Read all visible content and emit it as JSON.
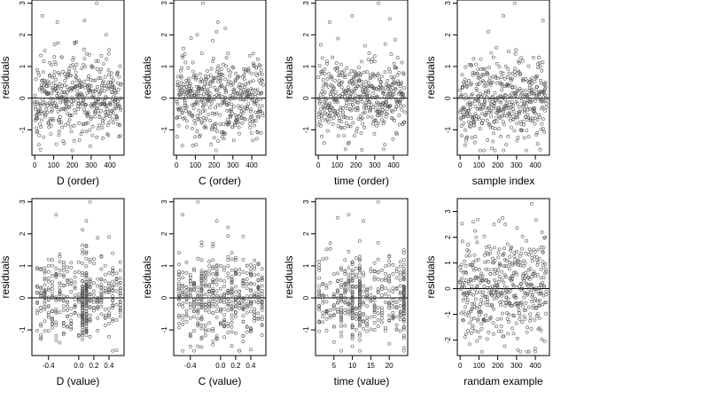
{
  "figure": {
    "layout": "2 rows x 4 columns of residual scatter plots",
    "point_style": "open circle",
    "colors": {
      "points": "#555555",
      "frame": "#000000",
      "reference_line": "#000000",
      "background": "#ffffff"
    }
  },
  "chart_data": [
    {
      "type": "scatter",
      "xlabel": "D (order)",
      "ylabel": "residuals",
      "xlim": [
        -15,
        475
      ],
      "ylim": [
        -1.8,
        3.1
      ],
      "xticks": [
        0,
        100,
        200,
        300,
        400
      ],
      "xtick_labels": [
        "0",
        "100",
        "200",
        "300",
        "400"
      ],
      "yticks": [
        -1,
        0,
        1,
        2,
        3
      ],
      "ytick_labels": [
        "-1",
        "0",
        "1",
        "2",
        "3"
      ],
      "reference_line_y": 0,
      "n_points": 460,
      "x_distribution": "uniform order 0-460",
      "y_distribution": "approximately normal, mean 0, sd 0.65",
      "annotated_points": [
        {
          "x": 40,
          "y": 2.6
        },
        {
          "x": 120,
          "y": 2.4
        },
        {
          "x": 265,
          "y": 2.45
        },
        {
          "x": 330,
          "y": 3.0
        },
        {
          "x": 380,
          "y": 2.0
        }
      ]
    },
    {
      "type": "scatter",
      "xlabel": "C (order)",
      "ylabel": "residuals",
      "xlim": [
        -15,
        475
      ],
      "ylim": [
        -1.8,
        3.1
      ],
      "xticks": [
        0,
        100,
        200,
        300,
        400
      ],
      "xtick_labels": [
        "0",
        "100",
        "200",
        "300",
        "400"
      ],
      "yticks": [
        -1,
        0,
        1,
        2,
        3
      ],
      "ytick_labels": [
        "-1",
        "0",
        "1",
        "2",
        "3"
      ],
      "reference_line_y": 0,
      "n_points": 460,
      "x_distribution": "uniform order 0-460",
      "y_distribution": "approximately normal, mean 0, sd 0.65",
      "annotated_points": [
        {
          "x": 140,
          "y": 3.0
        },
        {
          "x": 110,
          "y": 2.0
        },
        {
          "x": 220,
          "y": 2.4
        },
        {
          "x": 260,
          "y": 2.2
        }
      ]
    },
    {
      "type": "scatter",
      "xlabel": "time (order)",
      "ylabel": "residuals",
      "xlim": [
        -15,
        475
      ],
      "ylim": [
        -1.8,
        3.1
      ],
      "xticks": [
        0,
        100,
        200,
        300,
        400
      ],
      "xtick_labels": [
        "0",
        "100",
        "200",
        "300",
        "400"
      ],
      "yticks": [
        -1,
        0,
        1,
        2,
        3
      ],
      "ytick_labels": [
        "-1",
        "0",
        "1",
        "2",
        "3"
      ],
      "reference_line_y": 0,
      "n_points": 460,
      "x_distribution": "uniform order 0-460",
      "y_distribution": "approximately normal, mean 0, sd 0.65",
      "annotated_points": [
        {
          "x": 180,
          "y": 2.6
        },
        {
          "x": 320,
          "y": 3.0
        },
        {
          "x": 380,
          "y": 2.5
        },
        {
          "x": 60,
          "y": 2.4
        }
      ]
    },
    {
      "type": "scatter",
      "xlabel": "sample index",
      "ylabel": "residuals",
      "xlim": [
        -15,
        475
      ],
      "ylim": [
        -1.8,
        3.1
      ],
      "xticks": [
        0,
        100,
        200,
        300,
        400
      ],
      "xtick_labels": [
        "0",
        "100",
        "200",
        "300",
        "400"
      ],
      "yticks": [
        -1,
        0,
        1,
        2,
        3
      ],
      "ytick_labels": [
        "-1",
        "0",
        "1",
        "2",
        "3"
      ],
      "reference_line_y": 0,
      "n_points": 460,
      "x_distribution": "uniform order 0-460",
      "y_distribution": "approximately normal, mean 0, sd 0.65",
      "annotated_points": [
        {
          "x": 230,
          "y": 2.6
        },
        {
          "x": 290,
          "y": 3.0
        },
        {
          "x": 440,
          "y": 2.45
        },
        {
          "x": 150,
          "y": 2.1
        }
      ]
    },
    {
      "type": "scatter",
      "xlabel": "D (value)",
      "ylabel": "residuals",
      "xlim": [
        -0.62,
        0.6
      ],
      "ylim": [
        -1.8,
        3.1
      ],
      "xticks": [
        -0.4,
        0.0,
        0.2,
        0.4
      ],
      "xtick_labels": [
        "-0.4",
        "0.0",
        "0.2",
        "0.4"
      ],
      "yticks": [
        -1,
        0,
        1,
        2,
        3
      ],
      "ytick_labels": [
        "-1",
        "0",
        "1",
        "2",
        "3"
      ],
      "reference_line_y": 0,
      "n_points": 460,
      "x_distribution": "discrete columns from -0.55 to 0.55 step 0.05, denser near 0.05-0.1",
      "y_distribution": "approximately normal, mean 0, sd 0.65",
      "annotated_points": [
        {
          "x": -0.3,
          "y": 2.6
        },
        {
          "x": 0.15,
          "y": 3.0
        },
        {
          "x": 0.1,
          "y": 2.4
        },
        {
          "x": 0.4,
          "y": 1.9
        }
      ]
    },
    {
      "type": "scatter",
      "xlabel": "C (value)",
      "ylabel": "residuals",
      "xlim": [
        -0.62,
        0.6
      ],
      "ylim": [
        -1.8,
        3.1
      ],
      "xticks": [
        -0.4,
        0.0,
        0.2,
        0.4
      ],
      "xtick_labels": [
        "-0.4",
        "0.0",
        "0.2",
        "0.4"
      ],
      "yticks": [
        -1,
        0,
        1,
        2,
        3
      ],
      "ytick_labels": [
        "-1",
        "0",
        "1",
        "2",
        "3"
      ],
      "reference_line_y": 0,
      "n_points": 460,
      "x_distribution": "discrete columns from -0.55 to 0.55 step 0.05",
      "y_distribution": "approximately normal, mean 0, sd 0.65",
      "annotated_points": [
        {
          "x": -0.3,
          "y": 3.0
        },
        {
          "x": -0.5,
          "y": 2.6
        },
        {
          "x": -0.05,
          "y": 2.4
        },
        {
          "x": 0.1,
          "y": 2.2
        }
      ]
    },
    {
      "type": "scatter",
      "xlabel": "time (value)",
      "ylabel": "residuals",
      "xlim": [
        0,
        25
      ],
      "ylim": [
        -1.8,
        3.1
      ],
      "xticks": [
        5,
        10,
        15,
        20
      ],
      "xtick_labels": [
        "5",
        "10",
        "15",
        "20"
      ],
      "yticks": [
        -1,
        0,
        1,
        2,
        3
      ],
      "ytick_labels": [
        "-1",
        "0",
        "1",
        "2",
        "3"
      ],
      "reference_line_y": 0,
      "n_points": 460,
      "x_distribution": "discrete columns at integer hours 1-24, dense columns at 10, 12, 24",
      "y_distribution": "approximately normal, mean 0, sd 0.65",
      "annotated_points": [
        {
          "x": 9,
          "y": 2.6
        },
        {
          "x": 17,
          "y": 3.0
        },
        {
          "x": 6,
          "y": 2.5
        },
        {
          "x": 13,
          "y": 2.4
        }
      ]
    },
    {
      "type": "scatter",
      "xlabel": "randam example",
      "ylabel": "residuals",
      "xlim": [
        -15,
        475
      ],
      "ylim": [
        -2.6,
        3.5
      ],
      "xticks": [
        0,
        100,
        200,
        300,
        400
      ],
      "xtick_labels": [
        "0",
        "100",
        "200",
        "300",
        "400"
      ],
      "yticks": [
        -2,
        -1,
        0,
        1,
        2,
        3
      ],
      "ytick_labels": [
        "-2",
        "-1",
        "0",
        "1",
        "2",
        "3"
      ],
      "reference_line_y": 0,
      "n_points": 460,
      "x_distribution": "uniform order 0-460",
      "y_distribution": "approximately normal, mean 0, sd 1.0",
      "annotated_points": [
        {
          "x": 380,
          "y": 3.3
        },
        {
          "x": 70,
          "y": 2.6
        },
        {
          "x": 180,
          "y": 2.5
        },
        {
          "x": 240,
          "y": 2.5
        }
      ]
    }
  ]
}
